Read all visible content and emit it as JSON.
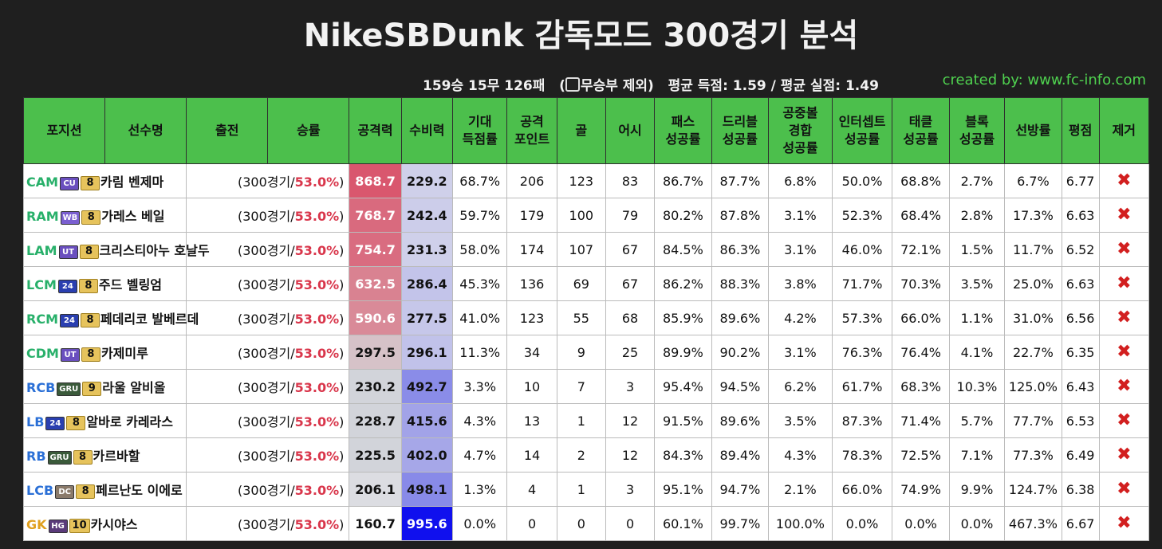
{
  "title": "NikeSBDunk 감독모드 300경기 분석",
  "summary": {
    "record": "159승 15무 126패",
    "draw_note_open": "(",
    "draw_note": "무승부 제외)",
    "avg_text": "평균 득점: 1.59 / 평균 실점: 1.49"
  },
  "credit": "created by: www.fc-info.com",
  "headers": [
    "포지션",
    "선수명",
    "출전",
    "승률",
    "공격력",
    "수비력",
    "기대\n득점률",
    "공격\n포인트",
    "골",
    "어시",
    "패스\n성공률",
    "드리블\n성공률",
    "공중볼\n경합\n성공률",
    "인터셉트\n성공률",
    "태클\n성공률",
    "블록\n성공률",
    "선방률",
    "평점",
    "제거"
  ],
  "remove_symbol": "✖",
  "colors": {
    "header_bg": "#4cbf4c",
    "win_rate": "#d9364b",
    "credit": "#4fd14f"
  },
  "players": [
    {
      "pos": "CAM",
      "pos_color": "#28b06a",
      "season": "CU",
      "season_color": "#6a4fbf",
      "grade": "8",
      "name": "카림 벤제마",
      "games": "(300경기/",
      "winrate": "53.0%",
      "close": ")",
      "atk": "868.7",
      "atk_bg": "#d9576e",
      "atk_fg": "#ffffff",
      "def": "229.2",
      "def_bg": "#cfd0ea",
      "def_fg": "#111111",
      "xg": "68.7%",
      "ap": "206",
      "goals": "123",
      "assists": "83",
      "pass": "86.7%",
      "dribble": "87.7%",
      "aerial": "6.8%",
      "intercept": "50.0%",
      "tackle": "68.8%",
      "block": "2.7%",
      "save": "6.7%",
      "rating": "6.77"
    },
    {
      "pos": "RAM",
      "pos_color": "#28b06a",
      "season": "WB",
      "season_color": "#7a5fd0",
      "grade": "8",
      "name": "가레스 베일",
      "games": "(300경기/",
      "winrate": "53.0%",
      "close": ")",
      "atk": "768.7",
      "atk_bg": "#d96a7e",
      "atk_fg": "#ffffff",
      "def": "242.4",
      "def_bg": "#cccdea",
      "def_fg": "#111111",
      "xg": "59.7%",
      "ap": "179",
      "goals": "100",
      "assists": "79",
      "pass": "80.2%",
      "dribble": "87.8%",
      "aerial": "3.1%",
      "intercept": "52.3%",
      "tackle": "68.4%",
      "block": "2.8%",
      "save": "17.3%",
      "rating": "6.63"
    },
    {
      "pos": "LAM",
      "pos_color": "#28b06a",
      "season": "UT",
      "season_color": "#6a4fbf",
      "grade": "8",
      "name": "크리스티아누 호날두",
      "games": "(300경기/",
      "winrate": "53.0%",
      "close": ")",
      "atk": "754.7",
      "atk_bg": "#d96c80",
      "atk_fg": "#ffffff",
      "def": "231.3",
      "def_bg": "#cfd0ea",
      "def_fg": "#111111",
      "xg": "58.0%",
      "ap": "174",
      "goals": "107",
      "assists": "67",
      "pass": "84.5%",
      "dribble": "86.3%",
      "aerial": "3.1%",
      "intercept": "46.0%",
      "tackle": "72.1%",
      "block": "1.5%",
      "save": "11.7%",
      "rating": "6.52"
    },
    {
      "pos": "LCM",
      "pos_color": "#28b06a",
      "season": "24",
      "season_color": "#2a3fb0",
      "grade": "8",
      "name": "주드 벨링엄",
      "games": "(300경기/",
      "winrate": "53.0%",
      "close": ")",
      "atk": "632.5",
      "atk_bg": "#d98291",
      "atk_fg": "#ffffff",
      "def": "286.4",
      "def_bg": "#c3c4ea",
      "def_fg": "#111111",
      "xg": "45.3%",
      "ap": "136",
      "goals": "69",
      "assists": "67",
      "pass": "86.2%",
      "dribble": "88.3%",
      "aerial": "3.8%",
      "intercept": "71.7%",
      "tackle": "70.3%",
      "block": "3.5%",
      "save": "25.0%",
      "rating": "6.63"
    },
    {
      "pos": "RCM",
      "pos_color": "#28b06a",
      "season": "24",
      "season_color": "#2a3fb0",
      "grade": "8",
      "name": "페데리코 발베르데",
      "games": "(300경기/",
      "winrate": "53.0%",
      "close": ")",
      "atk": "590.6",
      "atk_bg": "#d98a98",
      "atk_fg": "#ffffff",
      "def": "277.5",
      "def_bg": "#c6c7ea",
      "def_fg": "#111111",
      "xg": "41.0%",
      "ap": "123",
      "goals": "55",
      "assists": "68",
      "pass": "85.9%",
      "dribble": "89.6%",
      "aerial": "4.2%",
      "intercept": "57.3%",
      "tackle": "66.0%",
      "block": "1.1%",
      "save": "31.0%",
      "rating": "6.56"
    },
    {
      "pos": "CDM",
      "pos_color": "#28b06a",
      "season": "UT",
      "season_color": "#6a4fbf",
      "grade": "8",
      "name": "카제미루",
      "games": "(300경기/",
      "winrate": "53.0%",
      "close": ")",
      "atk": "297.5",
      "atk_bg": "#d6c2c8",
      "atk_fg": "#111111",
      "def": "296.1",
      "def_bg": "#c1c2ea",
      "def_fg": "#111111",
      "xg": "11.3%",
      "ap": "34",
      "goals": "9",
      "assists": "25",
      "pass": "89.9%",
      "dribble": "90.2%",
      "aerial": "3.1%",
      "intercept": "76.3%",
      "tackle": "76.4%",
      "block": "4.1%",
      "save": "22.7%",
      "rating": "6.35"
    },
    {
      "pos": "RCB",
      "pos_color": "#2a6fd6",
      "season": "GRU",
      "season_color": "#3a5a3a",
      "grade": "9",
      "name": "라울 알비올",
      "games": "(300경기/",
      "winrate": "53.0%",
      "close": ")",
      "atk": "230.2",
      "atk_bg": "#d2d4da",
      "atk_fg": "#111111",
      "def": "492.7",
      "def_bg": "#8a8ce8",
      "def_fg": "#111111",
      "xg": "3.3%",
      "ap": "10",
      "goals": "7",
      "assists": "3",
      "pass": "95.4%",
      "dribble": "94.5%",
      "aerial": "6.2%",
      "intercept": "61.7%",
      "tackle": "68.3%",
      "block": "10.3%",
      "save": "125.0%",
      "rating": "6.43"
    },
    {
      "pos": "LB",
      "pos_color": "#2a6fd6",
      "season": "24",
      "season_color": "#2a3fb0",
      "grade": "8",
      "name": "알바로 카레라스",
      "games": "(300경기/",
      "winrate": "53.0%",
      "close": ")",
      "atk": "228.7",
      "atk_bg": "#d2d4da",
      "atk_fg": "#111111",
      "def": "415.6",
      "def_bg": "#a2a3e8",
      "def_fg": "#111111",
      "xg": "4.3%",
      "ap": "13",
      "goals": "1",
      "assists": "12",
      "pass": "91.5%",
      "dribble": "89.6%",
      "aerial": "3.5%",
      "intercept": "87.3%",
      "tackle": "71.4%",
      "block": "5.7%",
      "save": "77.7%",
      "rating": "6.53"
    },
    {
      "pos": "RB",
      "pos_color": "#2a6fd6",
      "season": "GRU",
      "season_color": "#3a5a3a",
      "grade": "8",
      "name": "카르바할",
      "games": "(300경기/",
      "winrate": "53.0%",
      "close": ")",
      "atk": "225.5",
      "atk_bg": "#d2d4da",
      "atk_fg": "#111111",
      "def": "402.0",
      "def_bg": "#a6a7e8",
      "def_fg": "#111111",
      "xg": "4.7%",
      "ap": "14",
      "goals": "2",
      "assists": "12",
      "pass": "84.3%",
      "dribble": "89.4%",
      "aerial": "4.3%",
      "intercept": "78.3%",
      "tackle": "72.5%",
      "block": "7.1%",
      "save": "77.3%",
      "rating": "6.49"
    },
    {
      "pos": "LCB",
      "pos_color": "#2a6fd6",
      "season": "DC",
      "season_color": "#8a7a6a",
      "grade": "8",
      "name": "페르난도 이에로",
      "games": "(300경기/",
      "winrate": "53.0%",
      "close": ")",
      "atk": "206.1",
      "atk_bg": "#dcdde2",
      "atk_fg": "#111111",
      "def": "498.1",
      "def_bg": "#888ae8",
      "def_fg": "#111111",
      "xg": "1.3%",
      "ap": "4",
      "goals": "1",
      "assists": "3",
      "pass": "95.1%",
      "dribble": "94.7%",
      "aerial": "2.1%",
      "intercept": "66.0%",
      "tackle": "74.9%",
      "block": "9.9%",
      "save": "124.7%",
      "rating": "6.38"
    },
    {
      "pos": "GK",
      "pos_color": "#e0a020",
      "season": "HG",
      "season_color": "#5a3a7a",
      "grade": "10",
      "name": "카시야스",
      "games": "(300경기/",
      "winrate": "53.0%",
      "close": ")",
      "atk": "160.7",
      "atk_bg": "#ffffff",
      "atk_fg": "#111111",
      "def": "995.6",
      "def_bg": "#1010ee",
      "def_fg": "#ffffff",
      "xg": "0.0%",
      "ap": "0",
      "goals": "0",
      "assists": "0",
      "pass": "60.1%",
      "dribble": "99.7%",
      "aerial": "100.0%",
      "intercept": "0.0%",
      "tackle": "0.0%",
      "block": "0.0%",
      "save": "467.3%",
      "rating": "6.67"
    }
  ]
}
